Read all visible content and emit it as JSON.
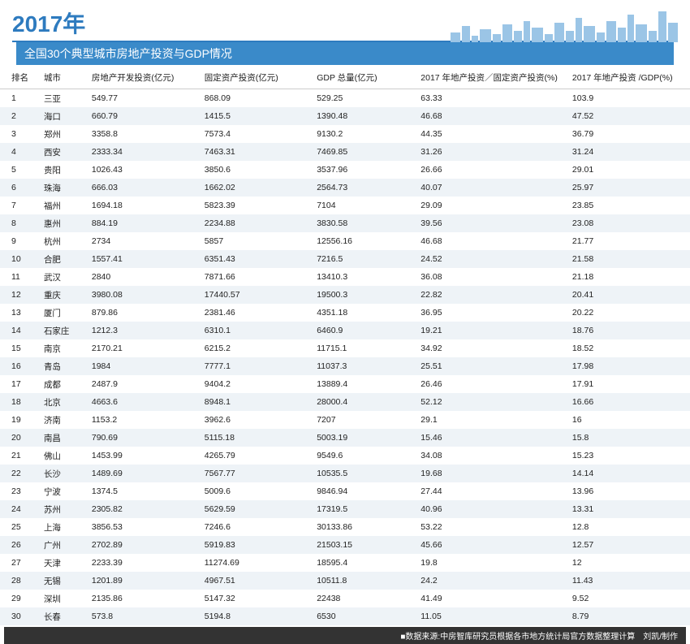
{
  "header": {
    "year_title": "2017年",
    "subtitle": "全国30个典型城市房地产投资与GDP情况",
    "accent_color": "#3a8ac9",
    "skyline_color": "#9bc5e6"
  },
  "table": {
    "columns": [
      "排名",
      "城市",
      "房地产开发投资(亿元)",
      "固定资产投资(亿元)",
      "GDP 总量(亿元)",
      "2017 年地产投资／固定资产投资(%)",
      "2017 年地产投资 /GDP(%)"
    ],
    "rows": [
      [
        "1",
        "三亚",
        "549.77",
        "868.09",
        "529.25",
        "63.33",
        "103.9"
      ],
      [
        "2",
        "海口",
        "660.79",
        "1415.5",
        "1390.48",
        "46.68",
        "47.52"
      ],
      [
        "3",
        "郑州",
        "3358.8",
        "7573.4",
        "9130.2",
        "44.35",
        "36.79"
      ],
      [
        "4",
        "西安",
        "2333.34",
        "7463.31",
        "7469.85",
        "31.26",
        "31.24"
      ],
      [
        "5",
        "贵阳",
        "1026.43",
        "3850.6",
        "3537.96",
        "26.66",
        "29.01"
      ],
      [
        "6",
        "珠海",
        "666.03",
        "1662.02",
        "2564.73",
        "40.07",
        "25.97"
      ],
      [
        "7",
        "福州",
        "1694.18",
        "5823.39",
        "7104",
        "29.09",
        "23.85"
      ],
      [
        "8",
        "惠州",
        "884.19",
        "2234.88",
        "3830.58",
        "39.56",
        "23.08"
      ],
      [
        "9",
        "杭州",
        "2734",
        "5857",
        "12556.16",
        "46.68",
        "21.77"
      ],
      [
        "10",
        "合肥",
        "1557.41",
        "6351.43",
        "7216.5",
        "24.52",
        "21.58"
      ],
      [
        "11",
        "武汉",
        "2840",
        "7871.66",
        "13410.3",
        "36.08",
        "21.18"
      ],
      [
        "12",
        "重庆",
        "3980.08",
        "17440.57",
        "19500.3",
        "22.82",
        "20.41"
      ],
      [
        "13",
        "厦门",
        "879.86",
        "2381.46",
        "4351.18",
        "36.95",
        "20.22"
      ],
      [
        "14",
        "石家庄",
        "1212.3",
        "6310.1",
        "6460.9",
        "19.21",
        "18.76"
      ],
      [
        "15",
        "南京",
        "2170.21",
        "6215.2",
        "11715.1",
        "34.92",
        "18.52"
      ],
      [
        "16",
        "青岛",
        "1984",
        "7777.1",
        "11037.3",
        "25.51",
        "17.98"
      ],
      [
        "17",
        "成都",
        "2487.9",
        "9404.2",
        "13889.4",
        "26.46",
        "17.91"
      ],
      [
        "18",
        "北京",
        "4663.6",
        "8948.1",
        "28000.4",
        "52.12",
        "16.66"
      ],
      [
        "19",
        "济南",
        "1153.2",
        "3962.6",
        "7207",
        "29.1",
        "16"
      ],
      [
        "20",
        "南昌",
        "790.69",
        "5115.18",
        "5003.19",
        "15.46",
        "15.8"
      ],
      [
        "21",
        "佛山",
        "1453.99",
        "4265.79",
        "9549.6",
        "34.08",
        "15.23"
      ],
      [
        "22",
        "长沙",
        "1489.69",
        "7567.77",
        "10535.5",
        "19.68",
        "14.14"
      ],
      [
        "23",
        "宁波",
        "1374.5",
        "5009.6",
        "9846.94",
        "27.44",
        "13.96"
      ],
      [
        "24",
        "苏州",
        "2305.82",
        "5629.59",
        "17319.5",
        "40.96",
        "13.31"
      ],
      [
        "25",
        "上海",
        "3856.53",
        "7246.6",
        "30133.86",
        "53.22",
        "12.8"
      ],
      [
        "26",
        "广州",
        "2702.89",
        "5919.83",
        "21503.15",
        "45.66",
        "12.57"
      ],
      [
        "27",
        "天津",
        "2233.39",
        "11274.69",
        "18595.4",
        "19.8",
        "12"
      ],
      [
        "28",
        "无锡",
        "1201.89",
        "4967.51",
        "10511.8",
        "24.2",
        "11.43"
      ],
      [
        "29",
        "深圳",
        "2135.86",
        "5147.32",
        "22438",
        "41.49",
        "9.52"
      ],
      [
        "30",
        "长春",
        "573.8",
        "5194.8",
        "6530",
        "11.05",
        "8.79"
      ]
    ],
    "row_even_bg": "#eef3f7",
    "row_odd_bg": "#ffffff"
  },
  "footer": {
    "text": "■数据来源:中房智库研究员根据各市地方统计局官方数据整理计算　刘凯/制作",
    "bg": "#333333"
  }
}
